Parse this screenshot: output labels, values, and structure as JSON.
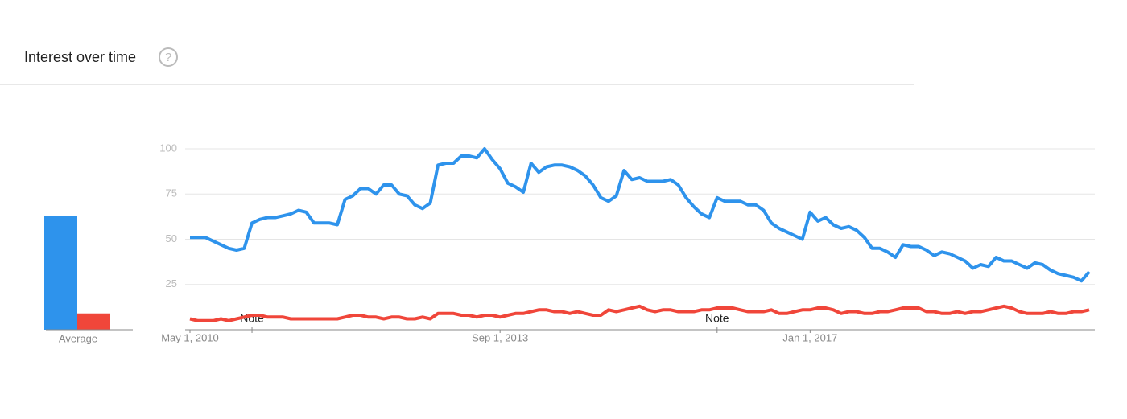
{
  "header": {
    "title": "Interest over time",
    "help_icon": "?"
  },
  "chart_data": [
    {
      "type": "bar",
      "categories": [
        "Average"
      ],
      "ylim": [
        0,
        100
      ],
      "series": [
        {
          "color": "#2e93ec",
          "values": [
            63
          ]
        },
        {
          "color": "#f0463a",
          "values": [
            9
          ]
        }
      ]
    },
    {
      "type": "line",
      "ylim": [
        0,
        100
      ],
      "yticks": [
        25,
        50,
        75,
        100
      ],
      "grid": true,
      "xlim": [
        "2010-05-01",
        "2020-01-01"
      ],
      "xticks": [
        {
          "value": "2010-05-01",
          "label": "May 1, 2010"
        },
        {
          "value": "2013-09-01",
          "label": "Sep 1, 2013"
        },
        {
          "value": "2017-01-01",
          "label": "Jan 1, 2017"
        }
      ],
      "annotations": [
        {
          "x": "2011-01-01",
          "text": "Note"
        },
        {
          "x": "2016-01-01",
          "text": "Note"
        }
      ],
      "x": [
        "2010-05-01",
        "2010-06-01",
        "2010-07-01",
        "2010-08-01",
        "2010-09-01",
        "2010-10-01",
        "2010-11-01",
        "2010-12-01",
        "2011-01-01",
        "2011-02-01",
        "2011-03-01",
        "2011-04-01",
        "2011-05-01",
        "2011-06-01",
        "2011-07-01",
        "2011-08-01",
        "2011-09-01",
        "2011-10-01",
        "2011-11-01",
        "2011-12-01",
        "2012-01-01",
        "2012-02-01",
        "2012-03-01",
        "2012-04-01",
        "2012-05-01",
        "2012-06-01",
        "2012-07-01",
        "2012-08-01",
        "2012-09-01",
        "2012-10-01",
        "2012-11-01",
        "2012-12-01",
        "2013-01-01",
        "2013-02-01",
        "2013-03-01",
        "2013-04-01",
        "2013-05-01",
        "2013-06-01",
        "2013-07-01",
        "2013-08-01",
        "2013-09-01",
        "2013-10-01",
        "2013-11-01",
        "2013-12-01",
        "2014-01-01",
        "2014-02-01",
        "2014-03-01",
        "2014-04-01",
        "2014-05-01",
        "2014-06-01",
        "2014-07-01",
        "2014-08-01",
        "2014-09-01",
        "2014-10-01",
        "2014-11-01",
        "2014-12-01",
        "2015-01-01",
        "2015-02-01",
        "2015-03-01",
        "2015-04-01",
        "2015-05-01",
        "2015-06-01",
        "2015-07-01",
        "2015-08-01",
        "2015-09-01",
        "2015-10-01",
        "2015-11-01",
        "2015-12-01",
        "2016-01-01",
        "2016-02-01",
        "2016-03-01",
        "2016-04-01",
        "2016-05-01",
        "2016-06-01",
        "2016-07-01",
        "2016-08-01",
        "2016-09-01",
        "2016-10-01",
        "2016-11-01",
        "2016-12-01",
        "2017-01-01",
        "2017-02-01",
        "2017-03-01",
        "2017-04-01",
        "2017-05-01",
        "2017-06-01",
        "2017-07-01",
        "2017-08-01",
        "2017-09-01",
        "2017-10-01",
        "2017-11-01",
        "2017-12-01",
        "2018-01-01",
        "2018-02-01",
        "2018-03-01",
        "2018-04-01",
        "2018-05-01",
        "2018-06-01",
        "2018-07-01",
        "2018-08-01",
        "2018-09-01",
        "2018-10-01",
        "2018-11-01",
        "2018-12-01",
        "2019-01-01",
        "2019-02-01",
        "2019-03-01",
        "2019-04-01",
        "2019-05-01",
        "2019-06-01",
        "2019-07-01",
        "2019-08-01",
        "2019-09-01",
        "2019-10-01",
        "2019-11-01",
        "2019-12-01",
        "2020-01-01"
      ],
      "series": [
        {
          "color": "#2e93ec",
          "values": [
            51,
            51,
            51,
            49,
            47,
            45,
            44,
            45,
            59,
            61,
            62,
            62,
            63,
            64,
            66,
            65,
            59,
            59,
            59,
            58,
            72,
            74,
            78,
            78,
            75,
            80,
            80,
            75,
            74,
            69,
            67,
            70,
            91,
            92,
            92,
            96,
            96,
            95,
            100,
            94,
            89,
            81,
            79,
            76,
            92,
            87,
            90,
            91,
            91,
            90,
            88,
            85,
            80,
            73,
            71,
            74,
            88,
            83,
            84,
            82,
            82,
            82,
            83,
            80,
            73,
            68,
            64,
            62,
            73,
            71,
            71,
            71,
            69,
            69,
            66,
            59,
            56,
            54,
            52,
            50,
            65,
            60,
            62,
            58,
            56,
            57,
            55,
            51,
            45,
            45,
            43,
            40,
            47,
            46,
            46,
            44,
            41,
            43,
            42,
            40,
            38,
            34,
            36,
            35,
            40,
            38,
            38,
            36,
            34,
            37,
            36,
            33,
            31,
            30,
            29,
            27,
            32
          ]
        },
        {
          "color": "#f0463a",
          "values": [
            6,
            5,
            5,
            5,
            6,
            5,
            6,
            7,
            8,
            8,
            7,
            7,
            7,
            6,
            6,
            6,
            6,
            6,
            6,
            6,
            7,
            8,
            8,
            7,
            7,
            6,
            7,
            7,
            6,
            6,
            7,
            6,
            9,
            9,
            9,
            8,
            8,
            7,
            8,
            8,
            7,
            8,
            9,
            9,
            10,
            11,
            11,
            10,
            10,
            9,
            10,
            9,
            8,
            8,
            11,
            10,
            11,
            12,
            13,
            11,
            10,
            11,
            11,
            10,
            10,
            10,
            11,
            11,
            12,
            12,
            12,
            11,
            10,
            10,
            10,
            11,
            9,
            9,
            10,
            11,
            11,
            12,
            12,
            11,
            9,
            10,
            10,
            9,
            9,
            10,
            10,
            11,
            12,
            12,
            12,
            10,
            10,
            9,
            9,
            10,
            9,
            10,
            10,
            11,
            12,
            13,
            12,
            10,
            9,
            9,
            9,
            10,
            9,
            9,
            10,
            10,
            11
          ]
        }
      ]
    }
  ]
}
